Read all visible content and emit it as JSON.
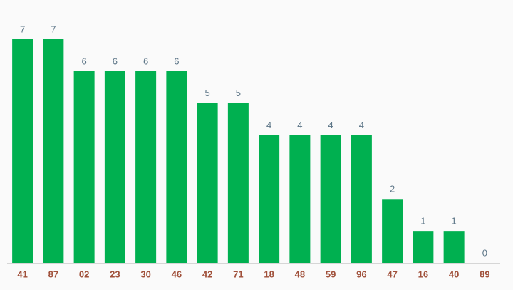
{
  "chart_data": {
    "type": "bar",
    "categories": [
      "41",
      "87",
      "02",
      "23",
      "30",
      "46",
      "42",
      "71",
      "18",
      "48",
      "59",
      "96",
      "47",
      "16",
      "40",
      "89"
    ],
    "values": [
      7,
      7,
      6,
      6,
      6,
      6,
      5,
      5,
      4,
      4,
      4,
      4,
      2,
      1,
      1,
      0
    ],
    "color": "#00b050",
    "ylim": [
      0,
      7
    ]
  }
}
